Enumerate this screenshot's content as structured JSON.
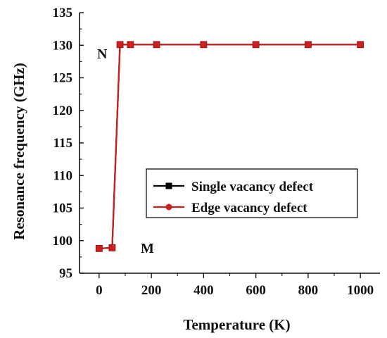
{
  "chart_data": {
    "type": "line",
    "title": "",
    "xlabel": "Temperature (K)",
    "ylabel": "Resonance frequency (GHz)",
    "xlim": [
      -75,
      1075
    ],
    "ylim": [
      95,
      135
    ],
    "xticks": [
      0,
      200,
      400,
      600,
      800,
      1000
    ],
    "yticks": [
      95,
      100,
      105,
      110,
      115,
      120,
      125,
      130,
      135
    ],
    "xtick_labels": [
      "0",
      "200",
      "400",
      "600",
      "800",
      "1000"
    ],
    "ytick_labels": [
      "95",
      "100",
      "105",
      "110",
      "115",
      "120",
      "125",
      "130",
      "135"
    ],
    "x": [
      0,
      50,
      80,
      120,
      220,
      400,
      600,
      800,
      1000
    ],
    "series": [
      {
        "name": "Single vacancy defect",
        "color": "#000000",
        "marker": "square",
        "values": [
          98.8,
          98.9,
          130.1,
          130.1,
          130.1,
          130.1,
          130.1,
          130.1,
          130.1
        ]
      },
      {
        "name": "Edge vacancy defect",
        "color": "#cc1f1f",
        "marker": "circle",
        "values": [
          98.8,
          98.9,
          130.1,
          130.1,
          130.1,
          130.1,
          130.1,
          130.1,
          130.1
        ]
      }
    ],
    "annotations": [
      {
        "text": "N",
        "x": 0,
        "y": 130
      },
      {
        "text": "M",
        "x": 95,
        "y": 99
      }
    ],
    "legend": "center-right",
    "grid": false
  }
}
